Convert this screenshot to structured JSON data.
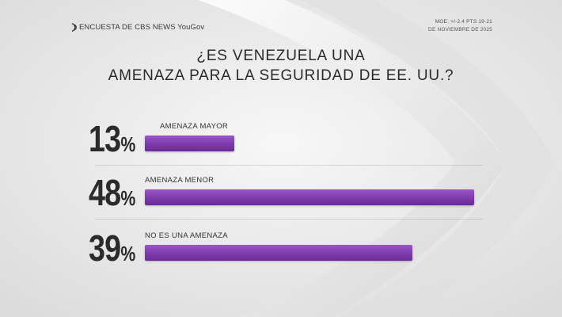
{
  "header": {
    "brand": "ENCUESTA DE CBS NEWS YouGov",
    "brand_icon": "cbs-eye-icon",
    "moe_line1": "MOE: +/-2.4 PTS 19-21",
    "moe_line2": "DE NOVIEMBRE DE 2025"
  },
  "colors": {
    "bar": "#7d3bab",
    "text": "#2b2b2b",
    "background": "#e9e9e9"
  },
  "chart_data": {
    "type": "bar",
    "title_line1": "¿ES VENEZUELA UNA",
    "title_line2": "AMENAZA PARA LA SEGURIDAD DE EE. UU.?",
    "orientation": "horizontal",
    "unit": "%",
    "xlim": [
      0,
      48
    ],
    "grid": false,
    "categories": [
      "AMENAZA MAYOR",
      "AMENAZA MENOR",
      "NO ES UNA AMENAZA"
    ],
    "values": [
      13,
      48,
      39
    ],
    "value_labels": [
      "13",
      "48",
      "39"
    ]
  }
}
